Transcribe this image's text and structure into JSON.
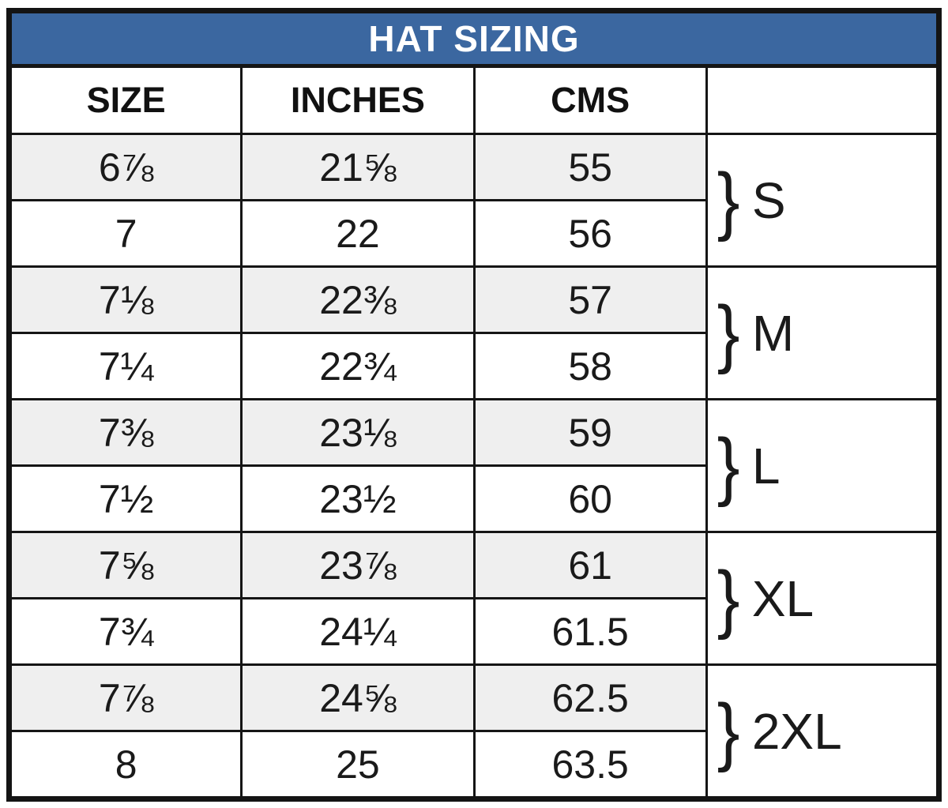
{
  "title": "HAT SIZING",
  "chart_data": {
    "type": "table",
    "title": "HAT SIZING",
    "columns": [
      "SIZE",
      "INCHES",
      "CMS",
      ""
    ],
    "rows": [
      {
        "size": "6⅞",
        "inches": "21⅝",
        "cms": "55"
      },
      {
        "size": "7",
        "inches": "22",
        "cms": "56"
      },
      {
        "size": "7⅛",
        "inches": "22⅜",
        "cms": "57"
      },
      {
        "size": "7¼",
        "inches": "22¾",
        "cms": "58"
      },
      {
        "size": "7⅜",
        "inches": "23⅛",
        "cms": "59"
      },
      {
        "size": "7½",
        "inches": "23½",
        "cms": "60"
      },
      {
        "size": "7⅝",
        "inches": "23⅞",
        "cms": "61"
      },
      {
        "size": "7¾",
        "inches": "24¼",
        "cms": "61.5"
      },
      {
        "size": "7⅞",
        "inches": "24⅝",
        "cms": "62.5"
      },
      {
        "size": "8",
        "inches": "25",
        "cms": "63.5"
      }
    ],
    "size_groups": [
      {
        "label": "S",
        "rows": [
          0,
          1
        ]
      },
      {
        "label": "M",
        "rows": [
          2,
          3
        ]
      },
      {
        "label": "L",
        "rows": [
          4,
          5
        ]
      },
      {
        "label": "XL",
        "rows": [
          6,
          7
        ]
      },
      {
        "label": "2XL",
        "rows": [
          8,
          9
        ]
      }
    ],
    "brace_glyph": "}"
  },
  "colors": {
    "header_bg": "#3b67a0",
    "header_text": "#ffffff",
    "row_alt_bg": "#efefef",
    "border": "#151515",
    "text": "#1a1a1a"
  }
}
